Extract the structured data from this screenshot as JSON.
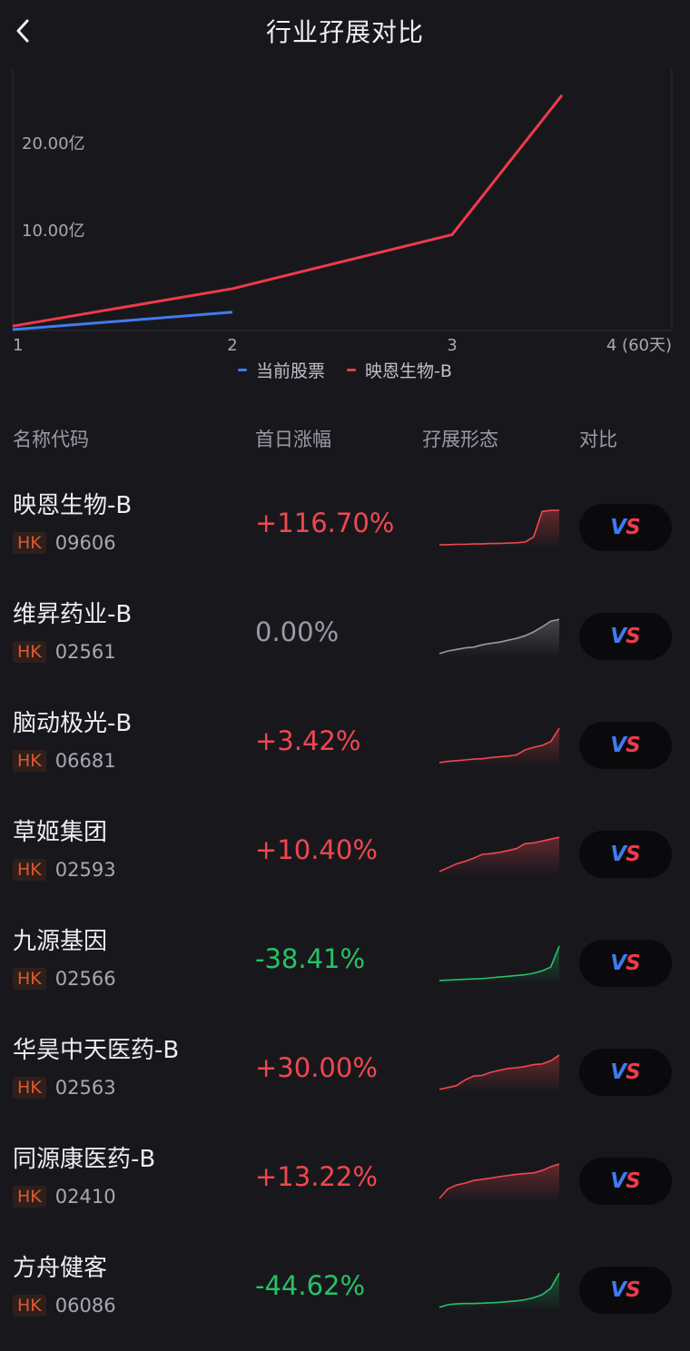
{
  "header": {
    "title": "行业孖展对比",
    "back_icon": "chevron-left-icon"
  },
  "chart_data": {
    "type": "line",
    "title": "",
    "x": [
      1,
      2,
      3,
      4
    ],
    "x_tick_labels": [
      "1",
      "2",
      "3",
      "4 (60天)"
    ],
    "y_tick_labels": [
      "10.00亿",
      "20.00亿"
    ],
    "ylim": [
      0,
      30
    ],
    "ylabel": "",
    "xlabel": "",
    "grid": false,
    "legend": "bottom-center",
    "series": [
      {
        "name": "当前股票",
        "color": "#3f7bf0",
        "x": [
          1,
          2
        ],
        "values": [
          0.1,
          2.1
        ]
      },
      {
        "name": "映恩生物-B",
        "color": "#ee3b4a",
        "x": [
          1,
          2,
          3,
          3.5
        ],
        "values": [
          0.5,
          4.8,
          11.0,
          27.0
        ]
      }
    ]
  },
  "columns": {
    "name": "名称代码",
    "change": "首日涨幅",
    "shape": "孖展形态",
    "compare": "对比"
  },
  "vs_label": {
    "v": "V",
    "s": "S"
  },
  "colors": {
    "up": "#f0474f",
    "down": "#26c266",
    "flat": "#9a9aa6",
    "market": "#e0582f"
  },
  "stocks": [
    {
      "name": "映恩生物-B",
      "market": "HK",
      "code": "09606",
      "change": "+116.70%",
      "trend": "up",
      "spark": [
        0.05,
        0.05,
        0.06,
        0.06,
        0.07,
        0.07,
        0.08,
        0.08,
        0.09,
        0.1,
        0.12,
        0.25,
        0.92,
        0.95,
        0.95
      ]
    },
    {
      "name": "维昇药业-B",
      "market": "HK",
      "code": "02561",
      "change": "0.00%",
      "trend": "flat",
      "spark": [
        0.05,
        0.12,
        0.16,
        0.2,
        0.22,
        0.28,
        0.32,
        0.35,
        0.4,
        0.45,
        0.52,
        0.62,
        0.75,
        0.9,
        0.95
      ]
    },
    {
      "name": "脑动极光-B",
      "market": "HK",
      "code": "06681",
      "change": "+3.42%",
      "trend": "up",
      "spark": [
        0.05,
        0.08,
        0.1,
        0.12,
        0.14,
        0.15,
        0.18,
        0.2,
        0.22,
        0.25,
        0.38,
        0.45,
        0.5,
        0.6,
        0.95
      ]
    },
    {
      "name": "草姬集团",
      "market": "HK",
      "code": "02593",
      "change": "+10.40%",
      "trend": "up",
      "spark": [
        0.05,
        0.15,
        0.25,
        0.32,
        0.4,
        0.5,
        0.52,
        0.55,
        0.6,
        0.65,
        0.78,
        0.8,
        0.85,
        0.9,
        0.95
      ]
    },
    {
      "name": "九源基因",
      "market": "HK",
      "code": "02566",
      "change": "-38.41%",
      "trend": "down",
      "spark": [
        0.05,
        0.06,
        0.07,
        0.08,
        0.09,
        0.1,
        0.12,
        0.14,
        0.16,
        0.18,
        0.2,
        0.24,
        0.3,
        0.4,
        0.95
      ]
    },
    {
      "name": "华昊中天医药-B",
      "market": "HK",
      "code": "02563",
      "change": "+30.00%",
      "trend": "up",
      "spark": [
        0.05,
        0.1,
        0.15,
        0.3,
        0.4,
        0.42,
        0.5,
        0.55,
        0.6,
        0.62,
        0.65,
        0.7,
        0.72,
        0.8,
        0.95
      ]
    },
    {
      "name": "同源康医药-B",
      "market": "HK",
      "code": "02410",
      "change": "+13.22%",
      "trend": "up",
      "spark": [
        0.05,
        0.3,
        0.4,
        0.45,
        0.52,
        0.55,
        0.58,
        0.62,
        0.65,
        0.68,
        0.7,
        0.72,
        0.78,
        0.88,
        0.95
      ]
    },
    {
      "name": "方舟健客",
      "market": "HK",
      "code": "06086",
      "change": "-44.62%",
      "trend": "down",
      "spark": [
        0.05,
        0.12,
        0.14,
        0.15,
        0.15,
        0.16,
        0.17,
        0.18,
        0.2,
        0.22,
        0.25,
        0.3,
        0.38,
        0.55,
        0.95
      ]
    }
  ]
}
